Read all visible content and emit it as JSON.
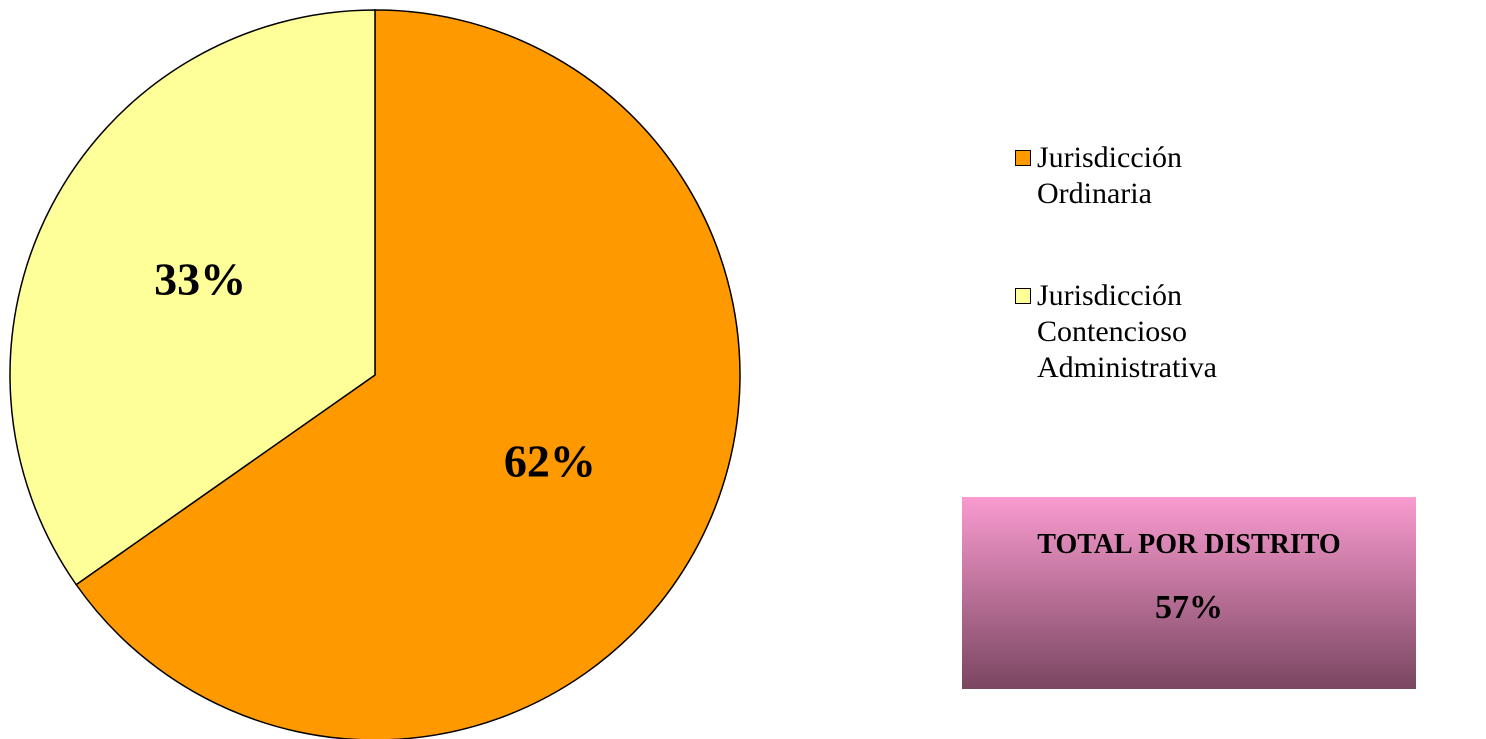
{
  "chart_data": {
    "type": "pie",
    "categories": [
      "Jurisdicción Ordinaria",
      "Jurisdicción Contencioso Administrativa"
    ],
    "values": [
      62,
      33
    ],
    "value_labels": [
      "62%",
      "33%"
    ],
    "colors": [
      "#FF9900",
      "#FFFF99"
    ],
    "legend": "right",
    "total": {
      "title": "TOTAL POR DISTRITO",
      "value_label": "57%"
    }
  }
}
